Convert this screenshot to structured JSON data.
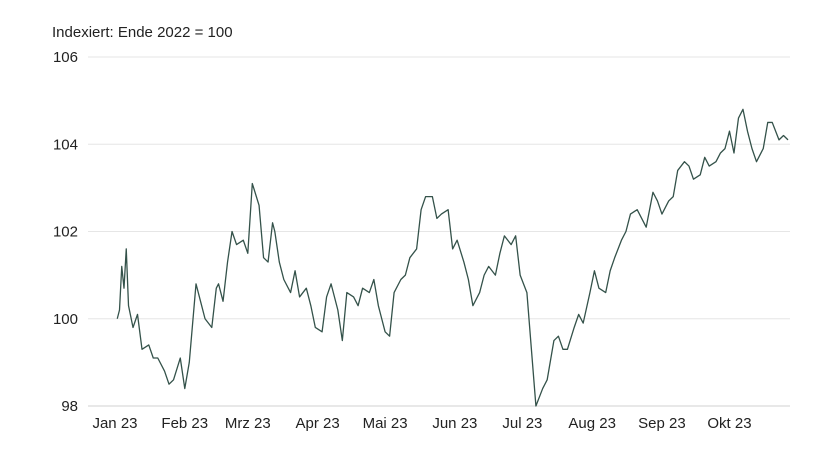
{
  "chart_data": {
    "type": "line",
    "subtitle": "Indexiert: Ende 2022 = 100",
    "title": "",
    "xlabel": "",
    "ylabel": "",
    "ylim": [
      98,
      106
    ],
    "yticks": [
      98,
      100,
      102,
      104,
      106
    ],
    "ytick_labels": [
      "98",
      "100",
      "102",
      "104",
      "106"
    ],
    "xlim": [
      "2023-01-01",
      "2023-10-27"
    ],
    "xticks": [
      "2023-01-01",
      "2023-02-01",
      "2023-03-01",
      "2023-04-01",
      "2023-05-01",
      "2023-06-01",
      "2023-07-01",
      "2023-08-01",
      "2023-09-01",
      "2023-10-01"
    ],
    "xtick_labels": [
      "Jan 23",
      "Feb 23",
      "Mrz 23",
      "Apr 23",
      "Mai 23",
      "Jun 23",
      "Jul 23",
      "Aug 23",
      "Sep 23",
      "Okt 23"
    ],
    "grid": true,
    "colors": {
      "line": "#34524a",
      "grid": "#e6e6e6"
    },
    "series": [
      {
        "x": [
          "2023-01-02",
          "2023-01-03",
          "2023-01-04",
          "2023-01-05",
          "2023-01-06",
          "2023-01-07",
          "2023-01-09",
          "2023-01-11",
          "2023-01-13",
          "2023-01-16",
          "2023-01-18",
          "2023-01-20",
          "2023-01-23",
          "2023-01-25",
          "2023-01-27",
          "2023-01-30",
          "2023-02-01",
          "2023-02-03",
          "2023-02-06",
          "2023-02-08",
          "2023-02-10",
          "2023-02-13",
          "2023-02-15",
          "2023-02-16",
          "2023-02-17",
          "2023-02-18",
          "2023-02-20",
          "2023-02-22",
          "2023-02-24",
          "2023-02-27",
          "2023-03-01",
          "2023-03-03",
          "2023-03-06",
          "2023-03-08",
          "2023-03-10",
          "2023-03-12",
          "2023-03-13",
          "2023-03-15",
          "2023-03-17",
          "2023-03-20",
          "2023-03-22",
          "2023-03-24",
          "2023-03-27",
          "2023-03-29",
          "2023-03-31",
          "2023-04-03",
          "2023-04-05",
          "2023-04-07",
          "2023-04-10",
          "2023-04-12",
          "2023-04-14",
          "2023-04-17",
          "2023-04-19",
          "2023-04-21",
          "2023-04-24",
          "2023-04-26",
          "2023-04-28",
          "2023-05-01",
          "2023-05-03",
          "2023-05-05",
          "2023-05-08",
          "2023-05-10",
          "2023-05-12",
          "2023-05-15",
          "2023-05-17",
          "2023-05-19",
          "2023-05-22",
          "2023-05-24",
          "2023-05-26",
          "2023-05-29",
          "2023-05-31",
          "2023-06-02",
          "2023-06-05",
          "2023-06-07",
          "2023-06-09",
          "2023-06-12",
          "2023-06-14",
          "2023-06-16",
          "2023-06-19",
          "2023-06-21",
          "2023-06-23",
          "2023-06-26",
          "2023-06-28",
          "2023-06-30",
          "2023-07-03",
          "2023-07-05",
          "2023-07-07",
          "2023-07-10",
          "2023-07-12",
          "2023-07-14",
          "2023-07-15",
          "2023-07-17",
          "2023-07-19",
          "2023-07-21",
          "2023-07-24",
          "2023-07-26",
          "2023-07-28",
          "2023-07-31",
          "2023-08-02",
          "2023-08-04",
          "2023-08-07",
          "2023-08-09",
          "2023-08-11",
          "2023-08-14",
          "2023-08-16",
          "2023-08-18",
          "2023-08-21",
          "2023-08-23",
          "2023-08-25",
          "2023-08-28",
          "2023-08-30",
          "2023-09-01",
          "2023-09-04",
          "2023-09-06",
          "2023-09-08",
          "2023-09-11",
          "2023-09-13",
          "2023-09-15",
          "2023-09-18",
          "2023-09-20",
          "2023-09-22",
          "2023-09-25",
          "2023-09-27",
          "2023-09-29",
          "2023-10-01",
          "2023-10-03",
          "2023-10-05",
          "2023-10-07",
          "2023-10-09",
          "2023-10-11",
          "2023-10-13",
          "2023-10-16",
          "2023-10-18",
          "2023-10-20",
          "2023-10-23",
          "2023-10-25",
          "2023-10-27"
        ],
        "values": [
          100.0,
          100.2,
          101.2,
          100.7,
          101.6,
          100.3,
          99.8,
          100.1,
          99.3,
          99.4,
          99.1,
          99.1,
          98.8,
          98.5,
          98.6,
          99.1,
          98.4,
          99.0,
          100.8,
          100.4,
          100.0,
          99.8,
          100.7,
          100.8,
          100.6,
          100.4,
          101.3,
          102.0,
          101.7,
          101.8,
          101.5,
          103.1,
          102.6,
          101.4,
          101.3,
          102.2,
          102.0,
          101.3,
          100.9,
          100.6,
          101.1,
          100.5,
          100.7,
          100.3,
          99.8,
          99.7,
          100.5,
          100.8,
          100.2,
          99.5,
          100.6,
          100.5,
          100.3,
          100.7,
          100.6,
          100.9,
          100.3,
          99.7,
          99.6,
          100.6,
          100.9,
          101.0,
          101.4,
          101.6,
          102.5,
          102.8,
          102.8,
          102.3,
          102.4,
          102.5,
          101.6,
          101.8,
          101.3,
          100.9,
          100.3,
          100.6,
          101.0,
          101.2,
          101.0,
          101.5,
          101.9,
          101.7,
          101.9,
          101.0,
          100.6,
          99.3,
          98.0,
          98.4,
          98.6,
          99.2,
          99.5,
          99.6,
          99.3,
          99.3,
          99.8,
          100.1,
          99.9,
          100.6,
          101.1,
          100.7,
          100.6,
          101.1,
          101.4,
          101.8,
          102.0,
          102.4,
          102.5,
          102.3,
          102.1,
          102.9,
          102.7,
          102.4,
          102.7,
          102.8,
          103.4,
          103.6,
          103.5,
          103.2,
          103.3,
          103.7,
          103.5,
          103.6,
          103.8,
          103.9,
          104.3,
          103.8,
          104.6,
          104.8,
          104.3,
          103.9,
          103.6,
          103.9,
          104.5,
          104.5,
          104.1,
          104.2,
          104.1
        ]
      }
    ]
  }
}
